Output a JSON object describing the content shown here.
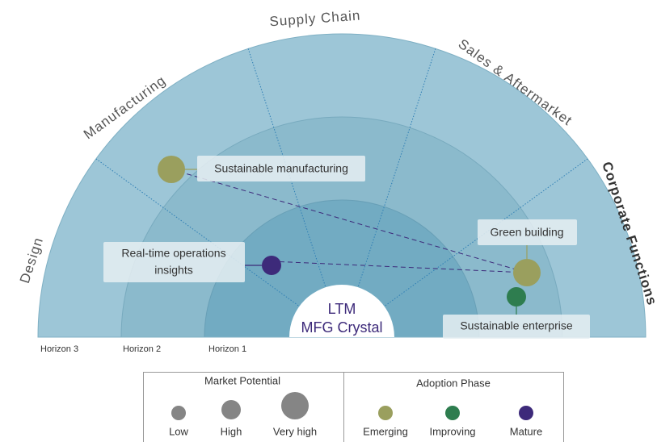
{
  "center": {
    "lines": [
      "LTM",
      "MFG Crystal"
    ]
  },
  "sectors": [
    "Design",
    "Manufacturing",
    "Supply Chain",
    "Sales & Aftermarket",
    "Corporate Functions"
  ],
  "horizons": [
    "Horizon 3",
    "Horizon 2",
    "Horizon 1"
  ],
  "items": [
    {
      "lines": [
        "Sustainable manufacturing"
      ]
    },
    {
      "lines": [
        "Real-time operations",
        "insights"
      ]
    },
    {
      "lines": [
        "Green building"
      ]
    },
    {
      "lines": [
        "Sustainable enterprise"
      ]
    }
  ],
  "legend": {
    "market_potential": {
      "title": "Market Potential",
      "labels": [
        "Low",
        "High",
        "Very high"
      ]
    },
    "adoption_phase": {
      "title": "Adoption Phase",
      "labels": [
        "Emerging",
        "Improving",
        "Mature"
      ]
    }
  }
}
